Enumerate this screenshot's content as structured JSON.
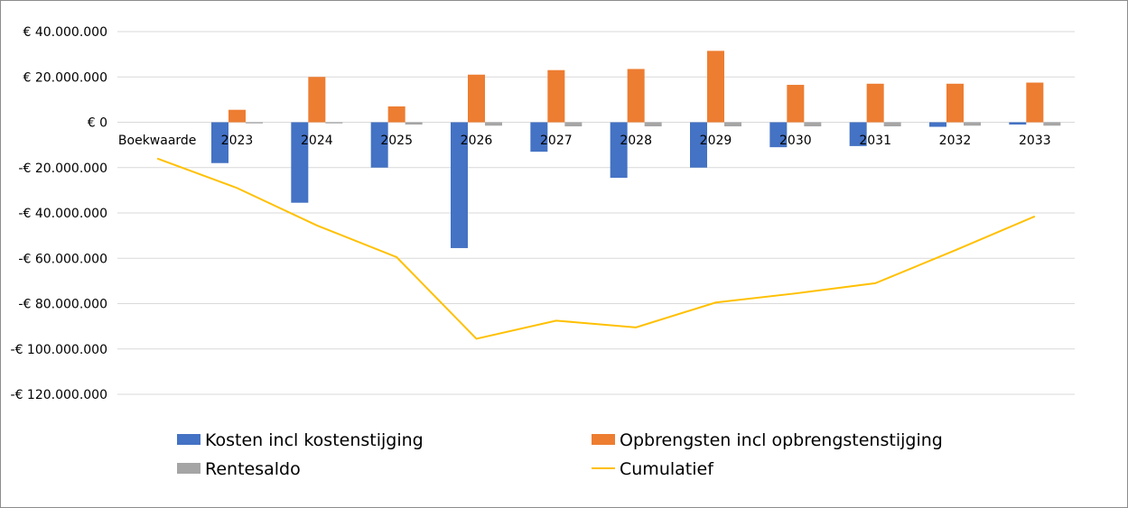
{
  "chart_data": {
    "type": "bar",
    "categories": [
      "Boekwaarde",
      "2023",
      "2024",
      "2025",
      "2026",
      "2027",
      "2028",
      "2029",
      "2030",
      "2031",
      "2032",
      "2033"
    ],
    "y_ticks": [
      "€ 40.000.000",
      "€ 20.000.000",
      "€ 0",
      "-€ 20.000.000",
      "-€ 40.000.000",
      "-€ 60.000.000",
      "-€ 80.000.000",
      "-€ 100.000.000",
      "-€ 120.000.000"
    ],
    "ylim": [
      -120000000,
      40000000
    ],
    "grid": true,
    "legend_position": "bottom",
    "series": [
      {
        "name": "Kosten incl kostenstijging",
        "type": "bar",
        "color": "#4472C4",
        "values": [
          0,
          -18000000,
          -35500000,
          -20000000,
          -55500000,
          -13000000,
          -24500000,
          -20000000,
          -11000000,
          -10500000,
          -2000000,
          -1000000
        ]
      },
      {
        "name": "Opbrengsten incl opbrengstenstijging",
        "type": "bar",
        "color": "#ED7D31",
        "values": [
          0,
          5500000,
          20000000,
          7000000,
          21000000,
          23000000,
          23500000,
          31500000,
          16500000,
          17000000,
          17000000,
          17500000
        ]
      },
      {
        "name": "Rentesaldo",
        "type": "bar",
        "color": "#A5A5A5",
        "values": [
          0,
          -500000,
          -500000,
          -1000000,
          -1500000,
          -1800000,
          -1800000,
          -1800000,
          -1800000,
          -1800000,
          -1500000,
          -1500000
        ]
      },
      {
        "name": "Cumulatief",
        "type": "line",
        "color": "#FFC000",
        "values": [
          -16000000,
          -29000000,
          -45500000,
          -59500000,
          -95500000,
          -87500000,
          -90500000,
          -79500000,
          -75500000,
          -71000000,
          -56500000,
          -41500000
        ]
      }
    ]
  }
}
